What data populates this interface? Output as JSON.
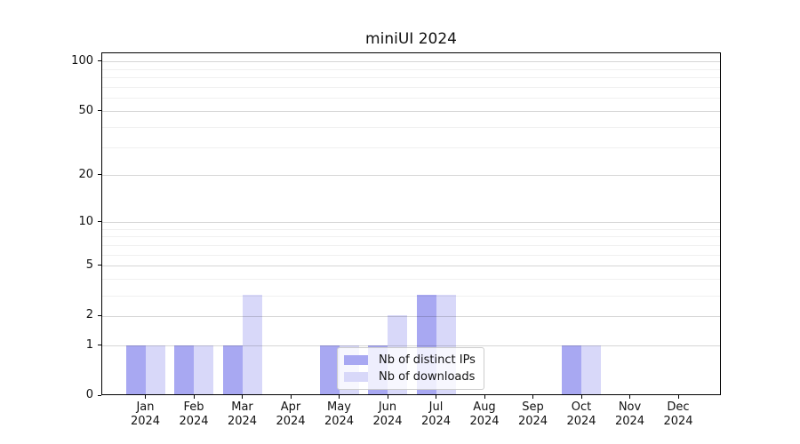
{
  "chart_data": {
    "type": "bar",
    "title": "miniUI 2024",
    "categories": [
      "Jan",
      "Feb",
      "Mar",
      "Apr",
      "May",
      "Jun",
      "Jul",
      "Aug",
      "Sep",
      "Oct",
      "Nov",
      "Dec"
    ],
    "category_year": "2024",
    "series": [
      {
        "name": "Nb of distinct IPs",
        "color": "#a8a8f2",
        "values": [
          1,
          1,
          1,
          0,
          1,
          1,
          3,
          0,
          0,
          1,
          0,
          0
        ]
      },
      {
        "name": "Nb of downloads",
        "color": "#d8d8f9",
        "values": [
          1,
          1,
          3,
          0,
          1,
          2,
          3,
          0,
          0,
          1,
          0,
          0
        ]
      }
    ],
    "yscale": "log1p",
    "ylim": [
      0,
      113
    ],
    "yticks": [
      0,
      1,
      2,
      5,
      10,
      20,
      50,
      100
    ],
    "minor_yticks": [
      3,
      4,
      6,
      7,
      8,
      9,
      30,
      40,
      60,
      70,
      80,
      90
    ],
    "grid": true,
    "legend_position": "inside-lower-center",
    "colors": {
      "axis": "#000000",
      "background": "#ffffff",
      "major_grid": "#d6d6d6",
      "minor_grid": "#efefef"
    }
  }
}
